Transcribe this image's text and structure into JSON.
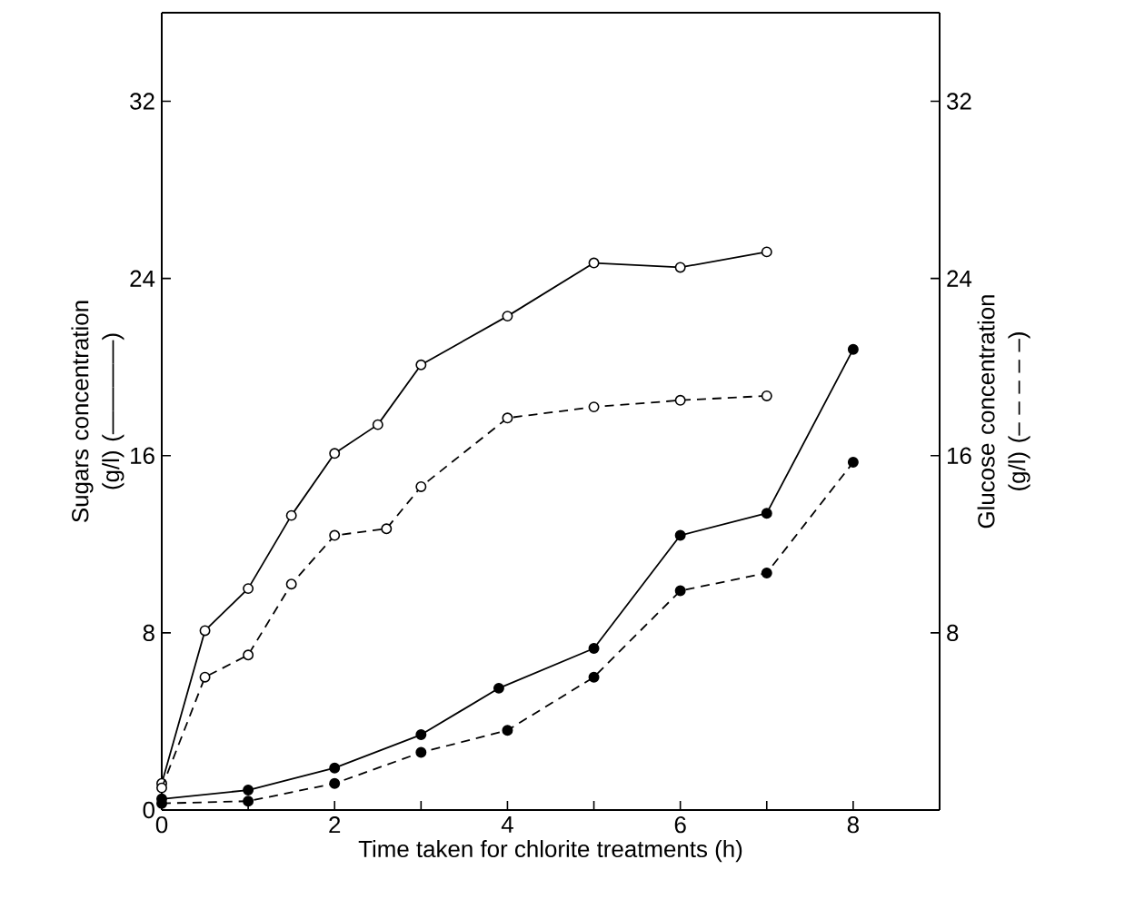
{
  "chart_data": {
    "type": "line",
    "xlabel": "Time taken for chlorite treatments (h)",
    "ylabel": "Sugars concentration (g/l) (————)",
    "y2label": "Glucose concentration (g/l) (– – – – –)",
    "xlim": [
      0,
      9
    ],
    "xticks": [
      0,
      {
        "value": 1,
        "label": null
      },
      2,
      {
        "value": 3,
        "label": null
      },
      4,
      {
        "value": 5,
        "label": null
      },
      6,
      {
        "value": 7,
        "label": null
      },
      8
    ],
    "ylim": [
      0,
      36
    ],
    "yticks": [
      0,
      8,
      16,
      24,
      32
    ],
    "y2lim": [
      0,
      36
    ],
    "y2ticks": [
      8,
      16,
      24,
      32
    ],
    "grid": false,
    "marker": "circle",
    "series": [
      {
        "color": "#000000",
        "marker": "circle_open",
        "line_style": "solid",
        "x": [
          0,
          0.5,
          1,
          1.5,
          2,
          2.5,
          3,
          4,
          5,
          6,
          7
        ],
        "values": [
          1.2,
          8.1,
          10.0,
          13.3,
          16.1,
          17.4,
          20.1,
          22.3,
          24.7,
          24.5,
          25.2
        ]
      },
      {
        "color": "#000000",
        "marker": "circle_open",
        "line_style": "dashed",
        "axis": "y2",
        "x": [
          0,
          0.5,
          1,
          1.5,
          2,
          2.6,
          3,
          4,
          5,
          6,
          7
        ],
        "values": [
          1.0,
          6.0,
          7.0,
          10.2,
          12.4,
          12.7,
          14.6,
          17.7,
          18.2,
          18.5,
          18.7
        ]
      },
      {
        "color": "#000000",
        "line_style": "solid",
        "x": [
          0,
          1,
          2,
          3,
          3.9,
          5,
          6,
          7,
          8
        ],
        "values": [
          0.5,
          0.9,
          1.9,
          3.4,
          5.5,
          7.3,
          12.4,
          13.4,
          20.8
        ]
      },
      {
        "color": "#000000",
        "line_style": "dashed",
        "axis": "y2",
        "x": [
          0,
          1,
          2,
          3,
          4,
          5,
          6,
          7,
          8
        ],
        "values": [
          0.3,
          0.4,
          1.2,
          2.6,
          3.6,
          6.0,
          9.9,
          10.7,
          15.7
        ]
      }
    ]
  }
}
